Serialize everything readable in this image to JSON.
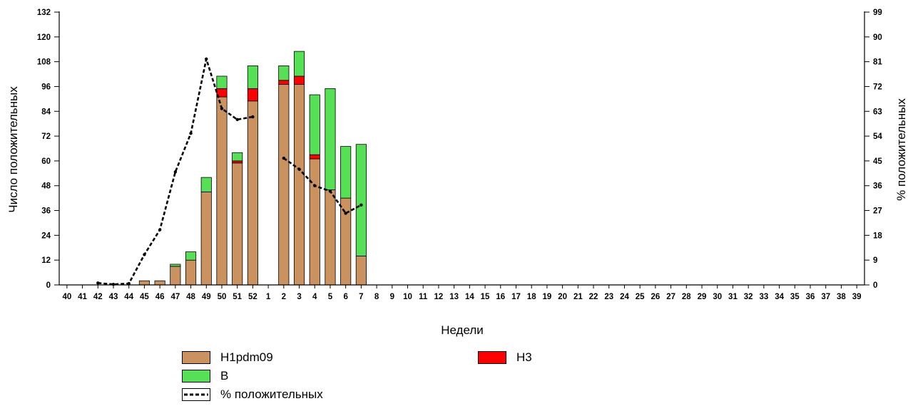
{
  "chart_data": {
    "type": "bar",
    "stacked": true,
    "categories": [
      "40",
      "41",
      "42",
      "43",
      "44",
      "45",
      "46",
      "47",
      "48",
      "49",
      "50",
      "51",
      "52",
      "1",
      "2",
      "3",
      "4",
      "5",
      "6",
      "7",
      "8",
      "9",
      "10",
      "11",
      "12",
      "13",
      "14",
      "15",
      "16",
      "17",
      "18",
      "19",
      "20",
      "21",
      "22",
      "23",
      "24",
      "25",
      "26",
      "27",
      "28",
      "29",
      "30",
      "31",
      "32",
      "33",
      "34",
      "35",
      "36",
      "37",
      "38",
      "39"
    ],
    "series": [
      {
        "name": "H1pdm09",
        "color": "#c9925e",
        "values": [
          0,
          0,
          0,
          0,
          0,
          2,
          2,
          9,
          12,
          45,
          91,
          59,
          89,
          0,
          97,
          97,
          61,
          46,
          42,
          14,
          0,
          0,
          0,
          0,
          0,
          0,
          0,
          0,
          0,
          0,
          0,
          0,
          0,
          0,
          0,
          0,
          0,
          0,
          0,
          0,
          0,
          0,
          0,
          0,
          0,
          0,
          0,
          0,
          0,
          0,
          0,
          0
        ]
      },
      {
        "name": "H3",
        "color": "#ff0000",
        "values": [
          0,
          0,
          0,
          0,
          0,
          0,
          0,
          0,
          0,
          0,
          4,
          1,
          6,
          0,
          2,
          4,
          2,
          0,
          0,
          0,
          0,
          0,
          0,
          0,
          0,
          0,
          0,
          0,
          0,
          0,
          0,
          0,
          0,
          0,
          0,
          0,
          0,
          0,
          0,
          0,
          0,
          0,
          0,
          0,
          0,
          0,
          0,
          0,
          0,
          0,
          0,
          0
        ]
      },
      {
        "name": "B",
        "color": "#55e055",
        "values": [
          0,
          0,
          0,
          0,
          0,
          0,
          0,
          1,
          4,
          7,
          6,
          4,
          11,
          0,
          7,
          12,
          29,
          49,
          25,
          54,
          0,
          0,
          0,
          0,
          0,
          0,
          0,
          0,
          0,
          0,
          0,
          0,
          0,
          0,
          0,
          0,
          0,
          0,
          0,
          0,
          0,
          0,
          0,
          0,
          0,
          0,
          0,
          0,
          0,
          0,
          0,
          0
        ]
      }
    ],
    "line_series": {
      "name": "% положительных",
      "axis": "right",
      "color": "#000000",
      "segments": [
        [
          [
            "42",
            0.7
          ],
          [
            "43",
            0.2
          ],
          [
            "44",
            0.5
          ],
          [
            "45",
            11
          ],
          [
            "46",
            20
          ],
          [
            "47",
            41
          ],
          [
            "48",
            55
          ],
          [
            "49",
            82
          ],
          [
            "50",
            64
          ],
          [
            "51",
            60
          ],
          [
            "52",
            61
          ]
        ],
        [
          [
            "2",
            46
          ],
          [
            "3",
            42
          ],
          [
            "4",
            36
          ],
          [
            "5",
            34
          ],
          [
            "6",
            26
          ],
          [
            "7",
            29
          ]
        ]
      ]
    },
    "xlabel": "Недели",
    "ylabel_left": "Число положительных",
    "ylabel_right": "% положительных",
    "ylim_left": [
      0,
      132
    ],
    "ylim_right": [
      0,
      99
    ],
    "yticks_left": [
      0,
      12,
      24,
      36,
      48,
      60,
      72,
      84,
      96,
      108,
      120,
      132
    ],
    "yticks_right": [
      0,
      9,
      18,
      27,
      36,
      45,
      54,
      63,
      72,
      81,
      90,
      99
    ],
    "grid": false
  },
  "legend": {
    "h1pdm09": {
      "label": "H1pdm09",
      "color": "#c9925e"
    },
    "h3": {
      "label": "H3",
      "color": "#ff0000"
    },
    "b": {
      "label": "B",
      "color": "#55e055"
    },
    "pct": {
      "label": "% положительных"
    }
  }
}
